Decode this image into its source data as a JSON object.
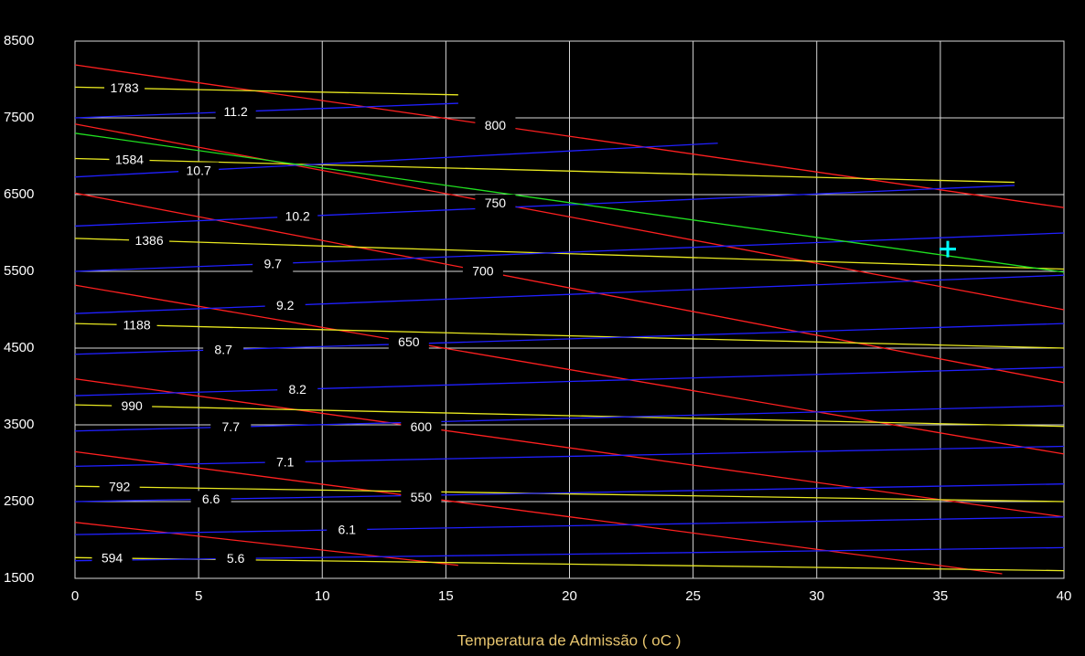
{
  "chart_data": {
    "type": "line",
    "xlabel": "Temperatura de Admissão ( oC )",
    "xlim": [
      0,
      40
    ],
    "xticks": [
      0,
      5,
      10,
      15,
      20,
      25,
      30,
      35,
      40
    ],
    "ylim": [
      1500,
      8500
    ],
    "yticks": [
      1500,
      2500,
      3500,
      4500,
      5500,
      6500,
      7500,
      8500
    ],
    "grid": true,
    "series": [
      {
        "name": "800",
        "color": "#ff2020",
        "x": [
          0,
          40
        ],
        "values": [
          8190,
          6330
        ]
      },
      {
        "name": "750",
        "color": "#ff2020",
        "x": [
          0,
          40
        ],
        "values": [
          7420,
          5000
        ]
      },
      {
        "name": "700",
        "color": "#ff2020",
        "x": [
          0,
          40
        ],
        "values": [
          6520,
          4050
        ]
      },
      {
        "name": "650",
        "color": "#ff2020",
        "x": [
          0,
          40
        ],
        "values": [
          5320,
          3120
        ]
      },
      {
        "name": "600",
        "color": "#ff2020",
        "x": [
          0,
          40
        ],
        "values": [
          4100,
          2300
        ]
      },
      {
        "name": "550",
        "color": "#ff2020",
        "x": [
          0,
          37.5
        ],
        "values": [
          3150,
          1560
        ]
      },
      {
        "color": "#ff2020",
        "x": [
          0,
          15.5
        ],
        "values": [
          2230,
          1670
        ]
      },
      {
        "name": "1783",
        "color": "#e8e820",
        "x": [
          0,
          15.5
        ],
        "values": [
          7900,
          7800
        ]
      },
      {
        "name": "1584",
        "color": "#e8e820",
        "x": [
          0,
          38
        ],
        "values": [
          6970,
          6660
        ]
      },
      {
        "name": "1386",
        "color": "#e8e820",
        "x": [
          0,
          40
        ],
        "values": [
          5930,
          5530
        ]
      },
      {
        "name": "1188",
        "color": "#e8e820",
        "x": [
          0,
          40
        ],
        "values": [
          4820,
          4500
        ]
      },
      {
        "name": "990",
        "color": "#e8e820",
        "x": [
          0,
          40
        ],
        "values": [
          3760,
          3480
        ]
      },
      {
        "name": "792",
        "color": "#e8e820",
        "x": [
          0,
          40
        ],
        "values": [
          2700,
          2500
        ]
      },
      {
        "name": "594",
        "color": "#e8e820",
        "x": [
          0,
          40
        ],
        "values": [
          1770,
          1600
        ]
      },
      {
        "name": "11.2",
        "color": "#2020ff",
        "x": [
          0,
          15.5
        ],
        "values": [
          7500,
          7690
        ]
      },
      {
        "name": "10.7",
        "color": "#2020ff",
        "x": [
          0,
          26
        ],
        "values": [
          6730,
          7170
        ]
      },
      {
        "name": "10.2",
        "color": "#2020ff",
        "x": [
          0,
          38
        ],
        "values": [
          6090,
          6620
        ]
      },
      {
        "name": "9.7",
        "color": "#2020ff",
        "x": [
          0,
          40
        ],
        "values": [
          5500,
          6000
        ]
      },
      {
        "name": "9.2",
        "color": "#2020ff",
        "x": [
          0,
          40
        ],
        "values": [
          4950,
          5450
        ]
      },
      {
        "name": "8.7",
        "color": "#2020ff",
        "x": [
          0,
          40
        ],
        "values": [
          4420,
          4820
        ]
      },
      {
        "name": "8.2",
        "color": "#2020ff",
        "x": [
          0,
          40
        ],
        "values": [
          3880,
          4250
        ]
      },
      {
        "name": "7.7",
        "color": "#2020ff",
        "x": [
          0,
          40
        ],
        "values": [
          3420,
          3750
        ]
      },
      {
        "name": "7.1",
        "color": "#2020ff",
        "x": [
          0,
          40
        ],
        "values": [
          2960,
          3220
        ]
      },
      {
        "name": "6.6",
        "color": "#2020ff",
        "x": [
          0,
          40
        ],
        "values": [
          2500,
          2730
        ]
      },
      {
        "name": "6.1",
        "color": "#2020ff",
        "x": [
          0,
          40
        ],
        "values": [
          2070,
          2300
        ]
      },
      {
        "name": "5.6",
        "color": "#2020ff",
        "x": [
          0,
          40
        ],
        "values": [
          1730,
          1900
        ]
      },
      {
        "color": "#20e020",
        "x": [
          0,
          40
        ],
        "values": [
          7300,
          5490
        ]
      }
    ],
    "marker": {
      "x": 35.3,
      "y": 5790,
      "color": "#00ffff"
    }
  }
}
